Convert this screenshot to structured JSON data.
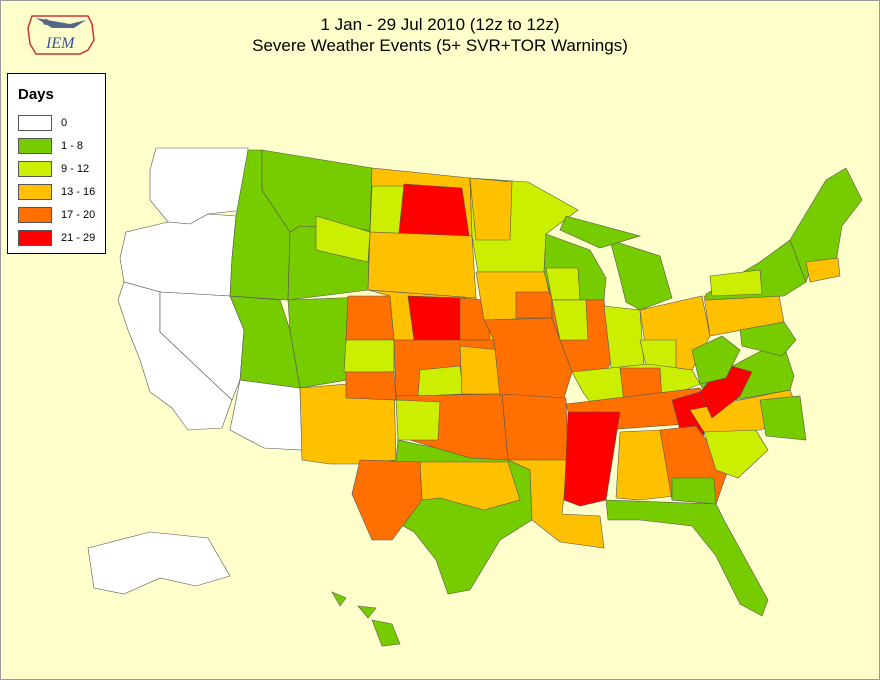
{
  "header": {
    "title_line1": "1 Jan - 29 Jul 2010 (12z to 12z)",
    "title_line2": "Severe Weather Events (5+ SVR+TOR Warnings)",
    "logo_text": "IEM"
  },
  "legend": {
    "title": "Days",
    "items": [
      {
        "label": "0",
        "color": "#ffffff"
      },
      {
        "label": "1 - 8",
        "color": "#77cc00"
      },
      {
        "label": "9 - 12",
        "color": "#ccee00"
      },
      {
        "label": "13 - 16",
        "color": "#ffc000"
      },
      {
        "label": "17 - 20",
        "color": "#ff7000"
      },
      {
        "label": "21 - 29",
        "color": "#ff0000"
      }
    ]
  }
}
